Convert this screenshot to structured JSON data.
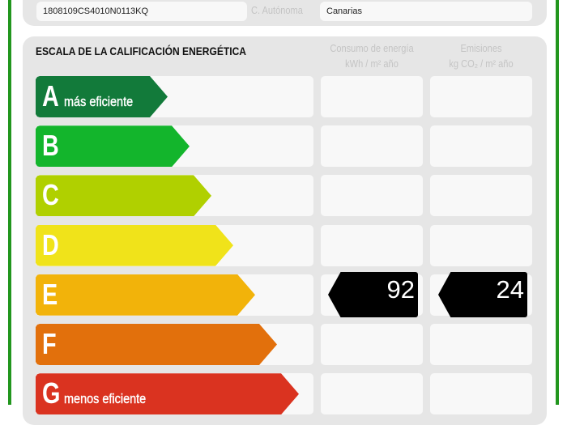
{
  "header": {
    "reference": "1808109CS4010N0113KQ",
    "region_label": "C. Autónoma",
    "region_value": "Canarias"
  },
  "scale": {
    "title": "ESCALA DE LA CALIFICACIÓN ENERGÉTICA",
    "col_energy": {
      "line1": "Consumo de energía",
      "line2": "kWh / m² año"
    },
    "col_emissions": {
      "line1": "Emisiones",
      "line2": "kg CO₂ / m² año"
    },
    "classes": [
      {
        "letter": "A",
        "sub": "más eficiente",
        "color": "#127a3a"
      },
      {
        "letter": "B",
        "sub": "",
        "color": "#13b52c"
      },
      {
        "letter": "C",
        "sub": "",
        "color": "#b0d000"
      },
      {
        "letter": "D",
        "sub": "",
        "color": "#f0e31a"
      },
      {
        "letter": "E",
        "sub": "",
        "color": "#f2b30a"
      },
      {
        "letter": "F",
        "sub": "",
        "color": "#e2700c"
      },
      {
        "letter": "G",
        "sub": "menos eficiente",
        "color": "#da3320"
      }
    ],
    "rating": {
      "class": "E",
      "energy": "92",
      "emissions": "24"
    }
  },
  "colors": {
    "frame": "#22961e",
    "panel": "#e6e6e6",
    "tag": "#000000"
  }
}
